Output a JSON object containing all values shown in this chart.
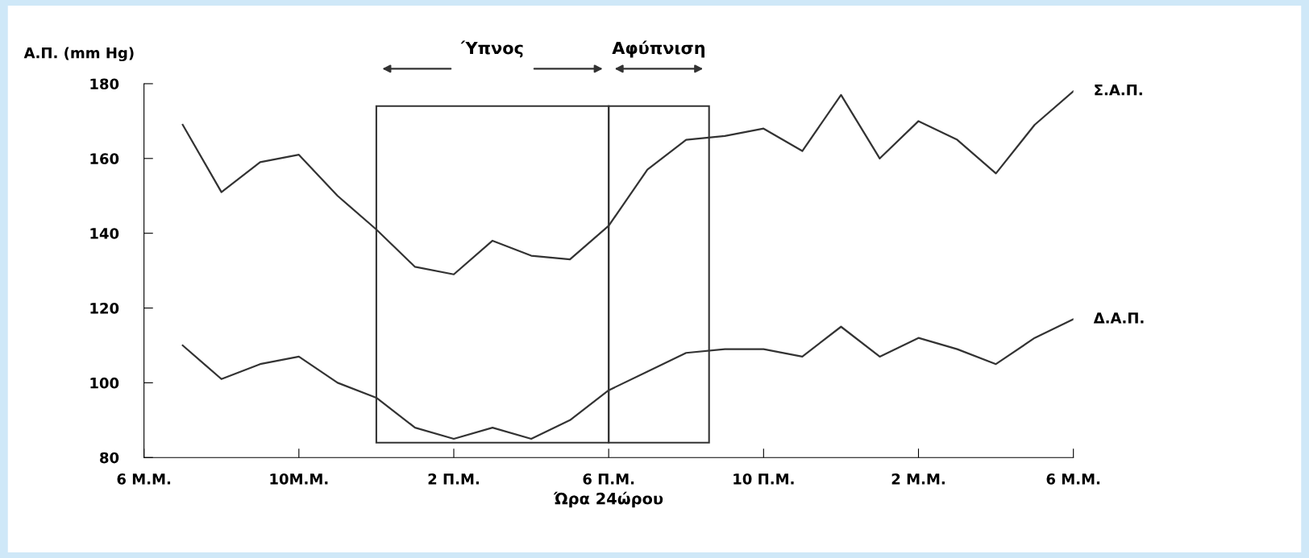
{
  "chart_data": {
    "type": "line",
    "xlabel": "Ώρα 24ώρου",
    "ylabel": "Α.Π. (mm Hg)",
    "categories": [
      "6 Μ.Μ.",
      null,
      null,
      null,
      "10Μ.Μ.",
      null,
      null,
      null,
      "2 Π.Μ.",
      null,
      null,
      null,
      "6 Π.Μ.",
      null,
      null,
      null,
      "10 Π.Μ.",
      null,
      null,
      null,
      "2 Μ.Μ.",
      null,
      null,
      null,
      "6 Μ.Μ."
    ],
    "series": [
      {
        "name": "Σ.Α.Π.",
        "color": "#333333",
        "values": [
          null,
          169,
          151,
          159,
          161,
          150,
          141,
          131,
          129,
          138,
          134,
          133,
          142,
          157,
          165,
          166,
          168,
          162,
          177,
          160,
          170,
          165,
          156,
          169,
          178
        ]
      },
      {
        "name": "Δ.Α.Π.",
        "color": "#333333",
        "values": [
          null,
          110,
          101,
          105,
          107,
          100,
          96,
          88,
          85,
          88,
          85,
          90,
          98,
          103,
          108,
          109,
          109,
          107,
          115,
          107,
          112,
          109,
          105,
          112,
          117
        ]
      }
    ],
    "ylim": [
      80,
      180
    ],
    "yticks": [
      80,
      100,
      120,
      140,
      160,
      180
    ],
    "annotations": [
      "Ύπνος",
      "Αφύπνιση"
    ],
    "grid": false,
    "legend": false,
    "marker": "none",
    "line_style": "solid"
  }
}
